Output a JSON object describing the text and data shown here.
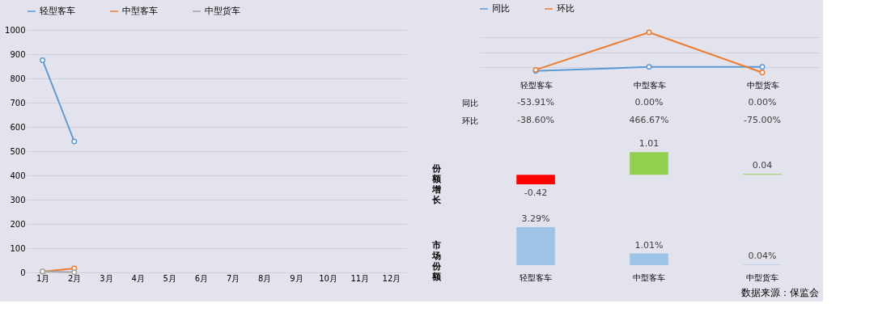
{
  "chart_data": [
    {
      "type": "line",
      "categories": [
        "1月",
        "2月",
        "3月",
        "4月",
        "5月",
        "6月",
        "7月",
        "8月",
        "9月",
        "10月",
        "11月",
        "12月"
      ],
      "ylim": [
        0,
        1000
      ],
      "yticks": [
        0,
        100,
        200,
        300,
        400,
        500,
        600,
        700,
        800,
        900,
        1000
      ],
      "grid": "y",
      "legend": "top",
      "marker": "circle",
      "line_style": "solid",
      "series": [
        {
          "name": "轻型客车",
          "color": "#5b9bd5",
          "values": [
            875,
            540,
            null,
            null,
            null,
            null,
            null,
            null,
            null,
            null,
            null,
            null
          ]
        },
        {
          "name": "中型客车",
          "color": "#ed7d31",
          "values": [
            3,
            17,
            null,
            null,
            null,
            null,
            null,
            null,
            null,
            null,
            null,
            null
          ]
        },
        {
          "name": "中型货车",
          "color": "#a5a5a5",
          "values": [
            4,
            1,
            null,
            null,
            null,
            null,
            null,
            null,
            null,
            null,
            null,
            null
          ]
        }
      ],
      "annotations": [
        "数据来源：保监会"
      ]
    },
    {
      "type": "line",
      "categories": [
        "轻型客车",
        "中型客车",
        "中型货车"
      ],
      "grid": "y",
      "legend": "top",
      "marker": "circle",
      "line_style": "solid",
      "series": [
        {
          "name": "同比",
          "color": "#5b9bd5",
          "values": [
            -53.91,
            0.0,
            0.0
          ],
          "value_labels": [
            "-53.91%",
            "0.00%",
            "0.00%"
          ]
        },
        {
          "name": "环比",
          "color": "#ed7d31",
          "values": [
            -38.6,
            466.67,
            -75.0
          ],
          "value_labels": [
            "-38.60%",
            "466.67%",
            "-75.00%"
          ]
        }
      ]
    },
    {
      "type": "bar",
      "ylabel": "份额增长",
      "categories": [
        null,
        null,
        null
      ],
      "tick_labels": false,
      "data_labels": true,
      "values": [
        -0.42,
        1.01,
        0.04
      ],
      "colors": [
        "#ff0000",
        "#92d050",
        "#92d050"
      ]
    },
    {
      "type": "bar",
      "ylabel": "市场份额",
      "categories": [
        "轻型客车",
        "中型客车",
        "中型货车"
      ],
      "tick_labels": "x",
      "values": [
        3.29,
        1.01,
        0.04
      ],
      "color": "#9dc3e6",
      "value_labels": [
        "3.29%",
        "1.01%",
        "0.04%"
      ]
    }
  ]
}
